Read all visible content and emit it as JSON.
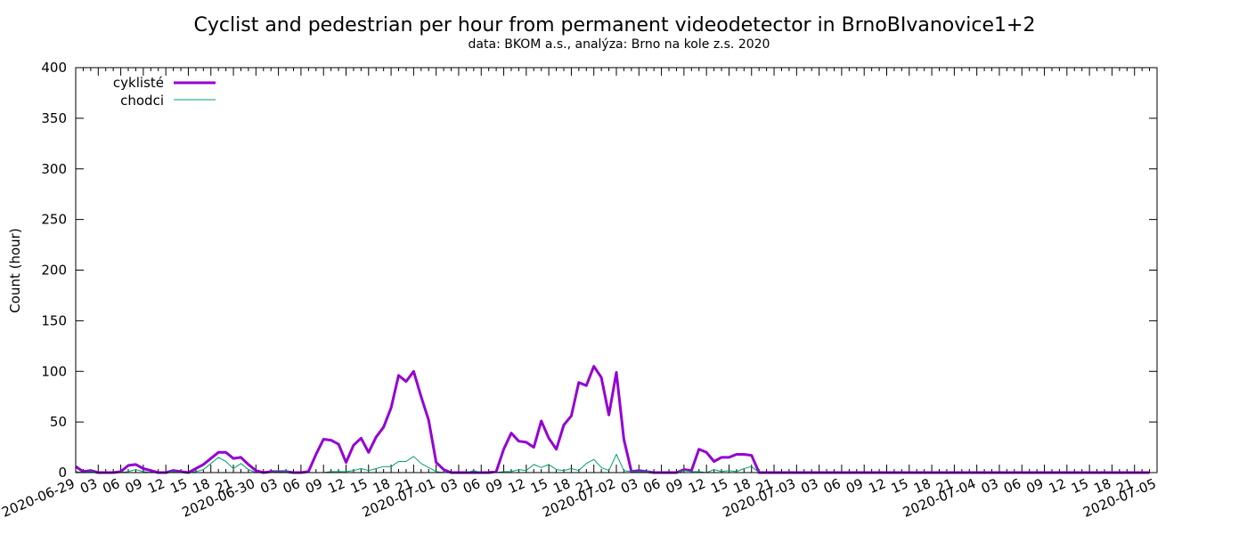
{
  "chart_data": {
    "type": "line",
    "title": "Cyclist and pedestrian per hour from permanent videodetector in BrnoBIvanovice1+2",
    "subtitle": "data: BKOM a.s., analýza: Brno na kole z.s. 2020",
    "xlabel": "",
    "ylabel": "Count (hour)",
    "ylim": [
      0,
      400
    ],
    "xlim": [
      "2020-06-29 00:00",
      "2020-07-05 00:00"
    ],
    "x_step_hours": 1,
    "y_ticks": [
      "0",
      "50",
      "100",
      "150",
      "200",
      "250",
      "300",
      "350",
      "400"
    ],
    "x_tick_labels": [
      "2020-06-29",
      "03",
      "06",
      "09",
      "12",
      "15",
      "18",
      "21",
      "2020-06-30",
      "03",
      "06",
      "09",
      "12",
      "15",
      "18",
      "21",
      "2020-07-01",
      "03",
      "06",
      "09",
      "12",
      "15",
      "18",
      "21",
      "2020-07-02",
      "03",
      "06",
      "09",
      "12",
      "15",
      "18",
      "21",
      "2020-07-03",
      "03",
      "06",
      "09",
      "12",
      "15",
      "18",
      "21",
      "2020-07-04",
      "03",
      "06",
      "09",
      "12",
      "15",
      "18",
      "21",
      "2020-07-05"
    ],
    "grid": false,
    "legend_position": "top-left",
    "series": [
      {
        "name": "cyklisté",
        "color": "#9400d3",
        "values": [
          6,
          1,
          2,
          0,
          0,
          0,
          1,
          7,
          8,
          4,
          2,
          0,
          0,
          2,
          1,
          0,
          4,
          8,
          14,
          20,
          20,
          14,
          15,
          8,
          2,
          0,
          1,
          1,
          1,
          0,
          0,
          1,
          18,
          33,
          32,
          28,
          10,
          27,
          34,
          20,
          35,
          45,
          64,
          96,
          90,
          100,
          75,
          52,
          10,
          3,
          0,
          0,
          0,
          0,
          0,
          0,
          1,
          23,
          39,
          31,
          30,
          25,
          51,
          34,
          23,
          47,
          56,
          89,
          86,
          105,
          94,
          57,
          99,
          33,
          1,
          2,
          1,
          0,
          0,
          0,
          0,
          3,
          2,
          23,
          20,
          11,
          15,
          15,
          18,
          18,
          17,
          0,
          0,
          0,
          0,
          0,
          0,
          0,
          0,
          0,
          0,
          0,
          0,
          0,
          0,
          0,
          0,
          0,
          0,
          0,
          0,
          0,
          0,
          0,
          0,
          0,
          0,
          0,
          0,
          0,
          0,
          0,
          0,
          0,
          0,
          0,
          0,
          0,
          0,
          0,
          0,
          0,
          0,
          0,
          0,
          0,
          0,
          0,
          0,
          0,
          0,
          0,
          0,
          0
        ]
      },
      {
        "name": "chodci",
        "color": "#009e73",
        "values": [
          1,
          0,
          1,
          0,
          0,
          0,
          0,
          1,
          3,
          1,
          0,
          0,
          0,
          1,
          0,
          0,
          1,
          3,
          9,
          15,
          11,
          4,
          9,
          3,
          0,
          0,
          0,
          2,
          1,
          0,
          0,
          0,
          0,
          0,
          1,
          1,
          1,
          2,
          4,
          2,
          4,
          6,
          6,
          11,
          11,
          16,
          9,
          5,
          1,
          0,
          0,
          0,
          0,
          2,
          0,
          0,
          0,
          1,
          1,
          3,
          2,
          8,
          5,
          8,
          3,
          2,
          4,
          2,
          9,
          13,
          5,
          2,
          18,
          2,
          1,
          1,
          1,
          0,
          0,
          0,
          0,
          2,
          1,
          1,
          0,
          3,
          1,
          2,
          1,
          4,
          6,
          0,
          0,
          0,
          0,
          0,
          0,
          0,
          0,
          0,
          0,
          0,
          0,
          0,
          0,
          0,
          0,
          0,
          0,
          0,
          0,
          0,
          0,
          0,
          0,
          0,
          0,
          0,
          0,
          0,
          0,
          0,
          0,
          0,
          0,
          0,
          0,
          0,
          0,
          0,
          0,
          0,
          0,
          0,
          0,
          0,
          0,
          0,
          0,
          0,
          0,
          0,
          0,
          0
        ]
      }
    ]
  }
}
